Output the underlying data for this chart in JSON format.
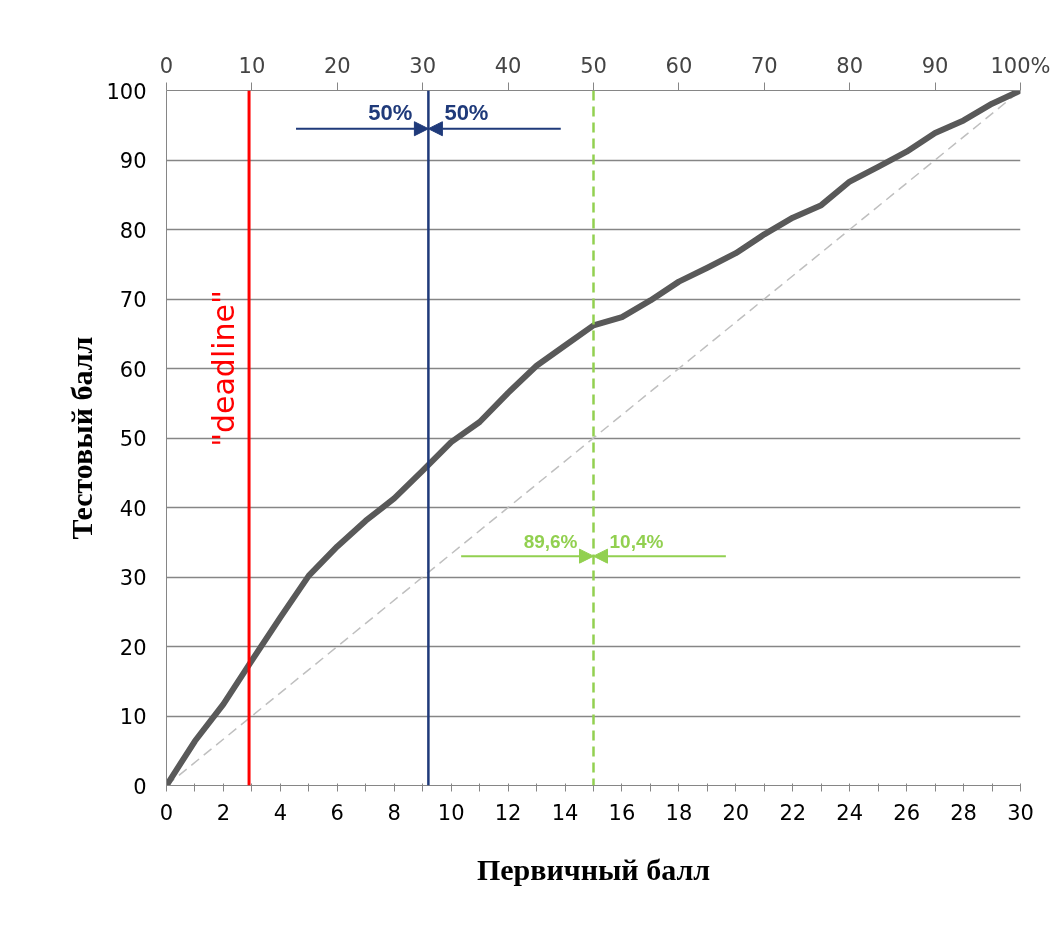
{
  "chart_data": {
    "type": "line",
    "xlabel": "Первичный балл",
    "ylabel": "Тестовый балл",
    "xlim": [
      0,
      30
    ],
    "xticks": [
      0,
      {
        "value": 1,
        "label": null
      },
      2,
      {
        "value": 3,
        "label": null
      },
      4,
      {
        "value": 5,
        "label": null
      },
      6,
      {
        "value": 7,
        "label": null
      },
      8,
      {
        "value": 9,
        "label": null
      },
      10,
      {
        "value": 11,
        "label": null
      },
      12,
      {
        "value": 13,
        "label": null
      },
      14,
      {
        "value": 15,
        "label": null
      },
      16,
      {
        "value": 17,
        "label": null
      },
      18,
      {
        "value": 19,
        "label": null
      },
      20,
      {
        "value": 21,
        "label": null
      },
      22,
      {
        "value": 23,
        "label": null
      },
      24,
      {
        "value": 25,
        "label": null
      },
      26,
      {
        "value": 27,
        "label": null
      },
      28,
      {
        "value": 29,
        "label": null
      },
      30
    ],
    "x2lim": [
      0,
      100
    ],
    "x2ticks": [
      0,
      10,
      20,
      30,
      40,
      50,
      60,
      70,
      80,
      90,
      {
        "value": 100,
        "label": "100%"
      }
    ],
    "ylim": [
      0,
      100
    ],
    "yticks": [
      0,
      10,
      20,
      30,
      40,
      50,
      60,
      70,
      80,
      90,
      100
    ],
    "grid": "y",
    "marker": "none",
    "series": [
      {
        "color": "#bfbfbf",
        "line_style": "dashed",
        "x": [
          0,
          30
        ],
        "values": [
          0,
          100
        ]
      },
      {
        "color": "#595959",
        "line_style": "solid",
        "x": [
          0,
          1,
          2,
          3,
          4,
          5,
          6,
          7,
          8,
          9,
          10,
          11,
          12,
          13,
          14,
          15,
          16,
          17,
          18,
          19,
          20,
          21,
          22,
          23,
          24,
          25,
          26,
          27,
          28,
          29,
          30
        ],
        "values": [
          0,
          6.4,
          11.7,
          18,
          24.2,
          30.2,
          34.4,
          38.1,
          41.3,
          45.3,
          49.4,
          52.3,
          56.5,
          60.4,
          63.3,
          66.2,
          67.4,
          69.8,
          72.5,
          74.5,
          76.6,
          79.3,
          81.7,
          83.5,
          86.9,
          89,
          91.2,
          93.9,
          95.7,
          98.1,
          100
        ]
      }
    ],
    "ref_lines": [
      {
        "axis": "x",
        "value": 2.9,
        "label": "\"deadline\"",
        "color": "#ff0000",
        "line_style": "solid"
      },
      {
        "axis": "x",
        "value": 9.2,
        "label": null,
        "color": "#1f3a7a",
        "line_style": "solid"
      },
      {
        "axis": "x",
        "value": 15,
        "label": null,
        "color": "#92d050",
        "line_style": "dashed"
      }
    ],
    "annotations": [
      "50%",
      "50%",
      "89,6%",
      "10,4%"
    ]
  }
}
